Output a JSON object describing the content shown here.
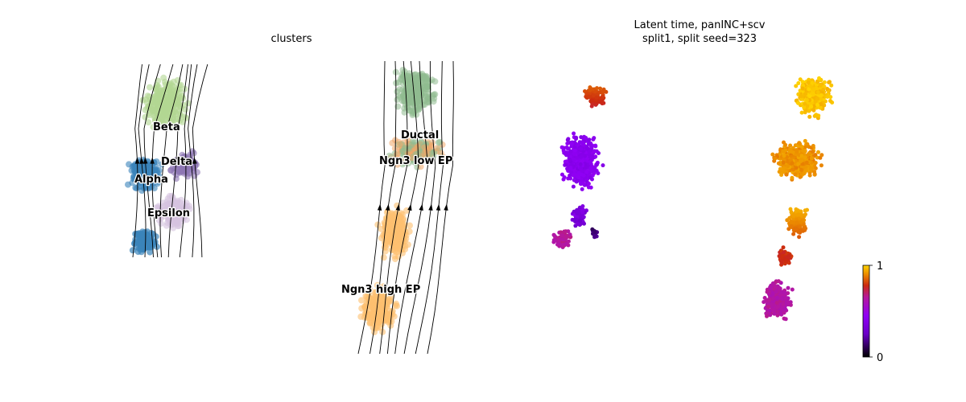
{
  "chart_data": [
    {
      "type": "scatter",
      "title": "clusters",
      "subplot": "left panel (stream embedding, endocrine lineage)",
      "clusters": [
        {
          "name": "Beta",
          "color": "#b2d793"
        },
        {
          "name": "Delta",
          "color": "#8e76b4"
        },
        {
          "name": "Alpha",
          "color": "#3a84bb"
        },
        {
          "name": "Epsilon",
          "color": "#d5c3df"
        }
      ],
      "streamlines": true
    },
    {
      "type": "scatter",
      "title": "clusters",
      "subplot": "right panel (stream embedding, progenitor lineage)",
      "clusters": [
        {
          "name": "Ductal",
          "color": "#8fbc8f"
        },
        {
          "name": "Ngn3 low EP",
          "color": "#f0a86a"
        },
        {
          "name": "Ngn3 high EP",
          "color": "#fdbf6f"
        }
      ],
      "streamlines": true
    },
    {
      "type": "scatter",
      "title": "Latent time, panINC+scv",
      "subtitle": "split1, split seed=323",
      "color_by": "latent time",
      "colorscale": "gnuplot",
      "colorbar": {
        "min": 0,
        "max": 1,
        "tick_labels": [
          "0",
          "1"
        ]
      }
    }
  ]
}
